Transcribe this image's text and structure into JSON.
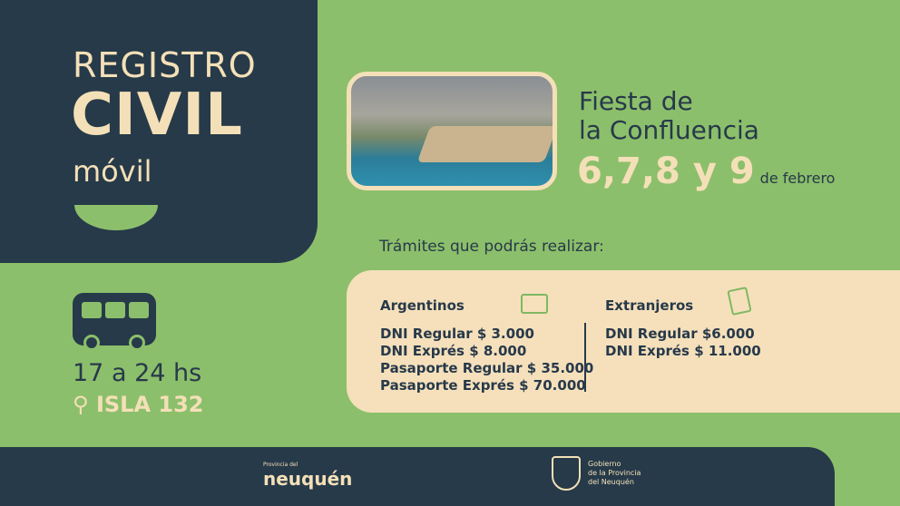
{
  "header": {
    "line1": "REGISTRO",
    "line2": "CIVIL",
    "line3": "móvil"
  },
  "event": {
    "title_line1": "Fiesta de",
    "title_line2": "la Confluencia",
    "days": "6,7,8 y 9",
    "month": "de febrero"
  },
  "procedures": {
    "heading": "Trámites que podrás realizar:",
    "argentinos": {
      "title": "Argentinos",
      "icon": "id-card-icon",
      "items": [
        "DNI Regular  $ 3.000",
        "DNI Exprés  $ 8.000",
        "Pasaporte Regular  $ 35.000",
        "Pasaporte Exprés  $ 70.000"
      ]
    },
    "extranjeros": {
      "title": "Extranjeros",
      "icon": "passport-icon",
      "items": [
        "DNI Regular $6.000",
        "DNI Exprés $ 11.000"
      ]
    }
  },
  "info": {
    "hours": "17 a 24 hs",
    "place": "ISLA 132",
    "icons": [
      "bus-icon",
      "location-pin-icon"
    ]
  },
  "footer": {
    "logo1_small": "Provincia del",
    "logo1": "neuquén",
    "logo2_lines": [
      "Gobierno",
      "de la Provincia",
      "del Neuquén"
    ]
  },
  "colors": {
    "navy": "#263a49",
    "green": "#8cbf6b",
    "cream": "#f5e0bb"
  }
}
